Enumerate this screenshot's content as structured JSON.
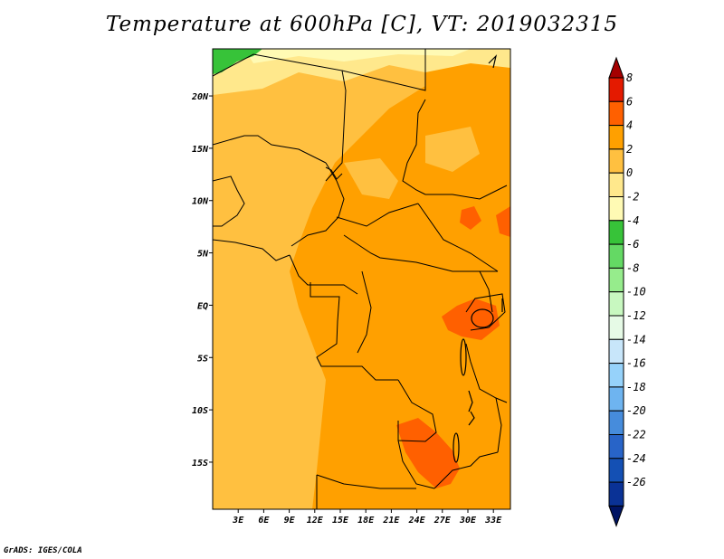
{
  "title": "Temperature at 600hPa [C], VT: 2019032315",
  "credit": "GrADS: IGES/COLA",
  "map": {
    "lon_labels": [
      "3E",
      "6E",
      "9E",
      "12E",
      "15E",
      "18E",
      "21E",
      "24E",
      "27E",
      "30E",
      "33E"
    ],
    "lat_labels": [
      "20N",
      "15N",
      "10N",
      "5N",
      "EQ",
      "5S",
      "10S",
      "15S"
    ],
    "lon_range_deg": [
      0,
      35
    ],
    "lat_range_deg": [
      -19.5,
      24.5
    ],
    "background_field": "orange (2 to 4 C) dominant, lighter orange (0 to 2 C) over west and north, red-orange patches (4 to 6 C) in southeast, green (-6 to -4 C) in northwest corner"
  },
  "colorbar": {
    "labels": [
      "8",
      "6",
      "4",
      "2",
      "0",
      "-2",
      "-4",
      "-6",
      "-8",
      "-10",
      "-12",
      "-14",
      "-16",
      "-18",
      "-20",
      "-22",
      "-24",
      "-26"
    ],
    "colors": [
      "#a50000",
      "#e41a00",
      "#ff6000",
      "#ffa000",
      "#ffc040",
      "#ffe88c",
      "#fffab4",
      "#37c339",
      "#64d964",
      "#96ec8c",
      "#c8f8c0",
      "#e6fae6",
      "#c8e6fa",
      "#96d2fa",
      "#6eb4f0",
      "#468cdc",
      "#2864c8",
      "#1450b4",
      "#0a3296",
      "#001464"
    ]
  }
}
